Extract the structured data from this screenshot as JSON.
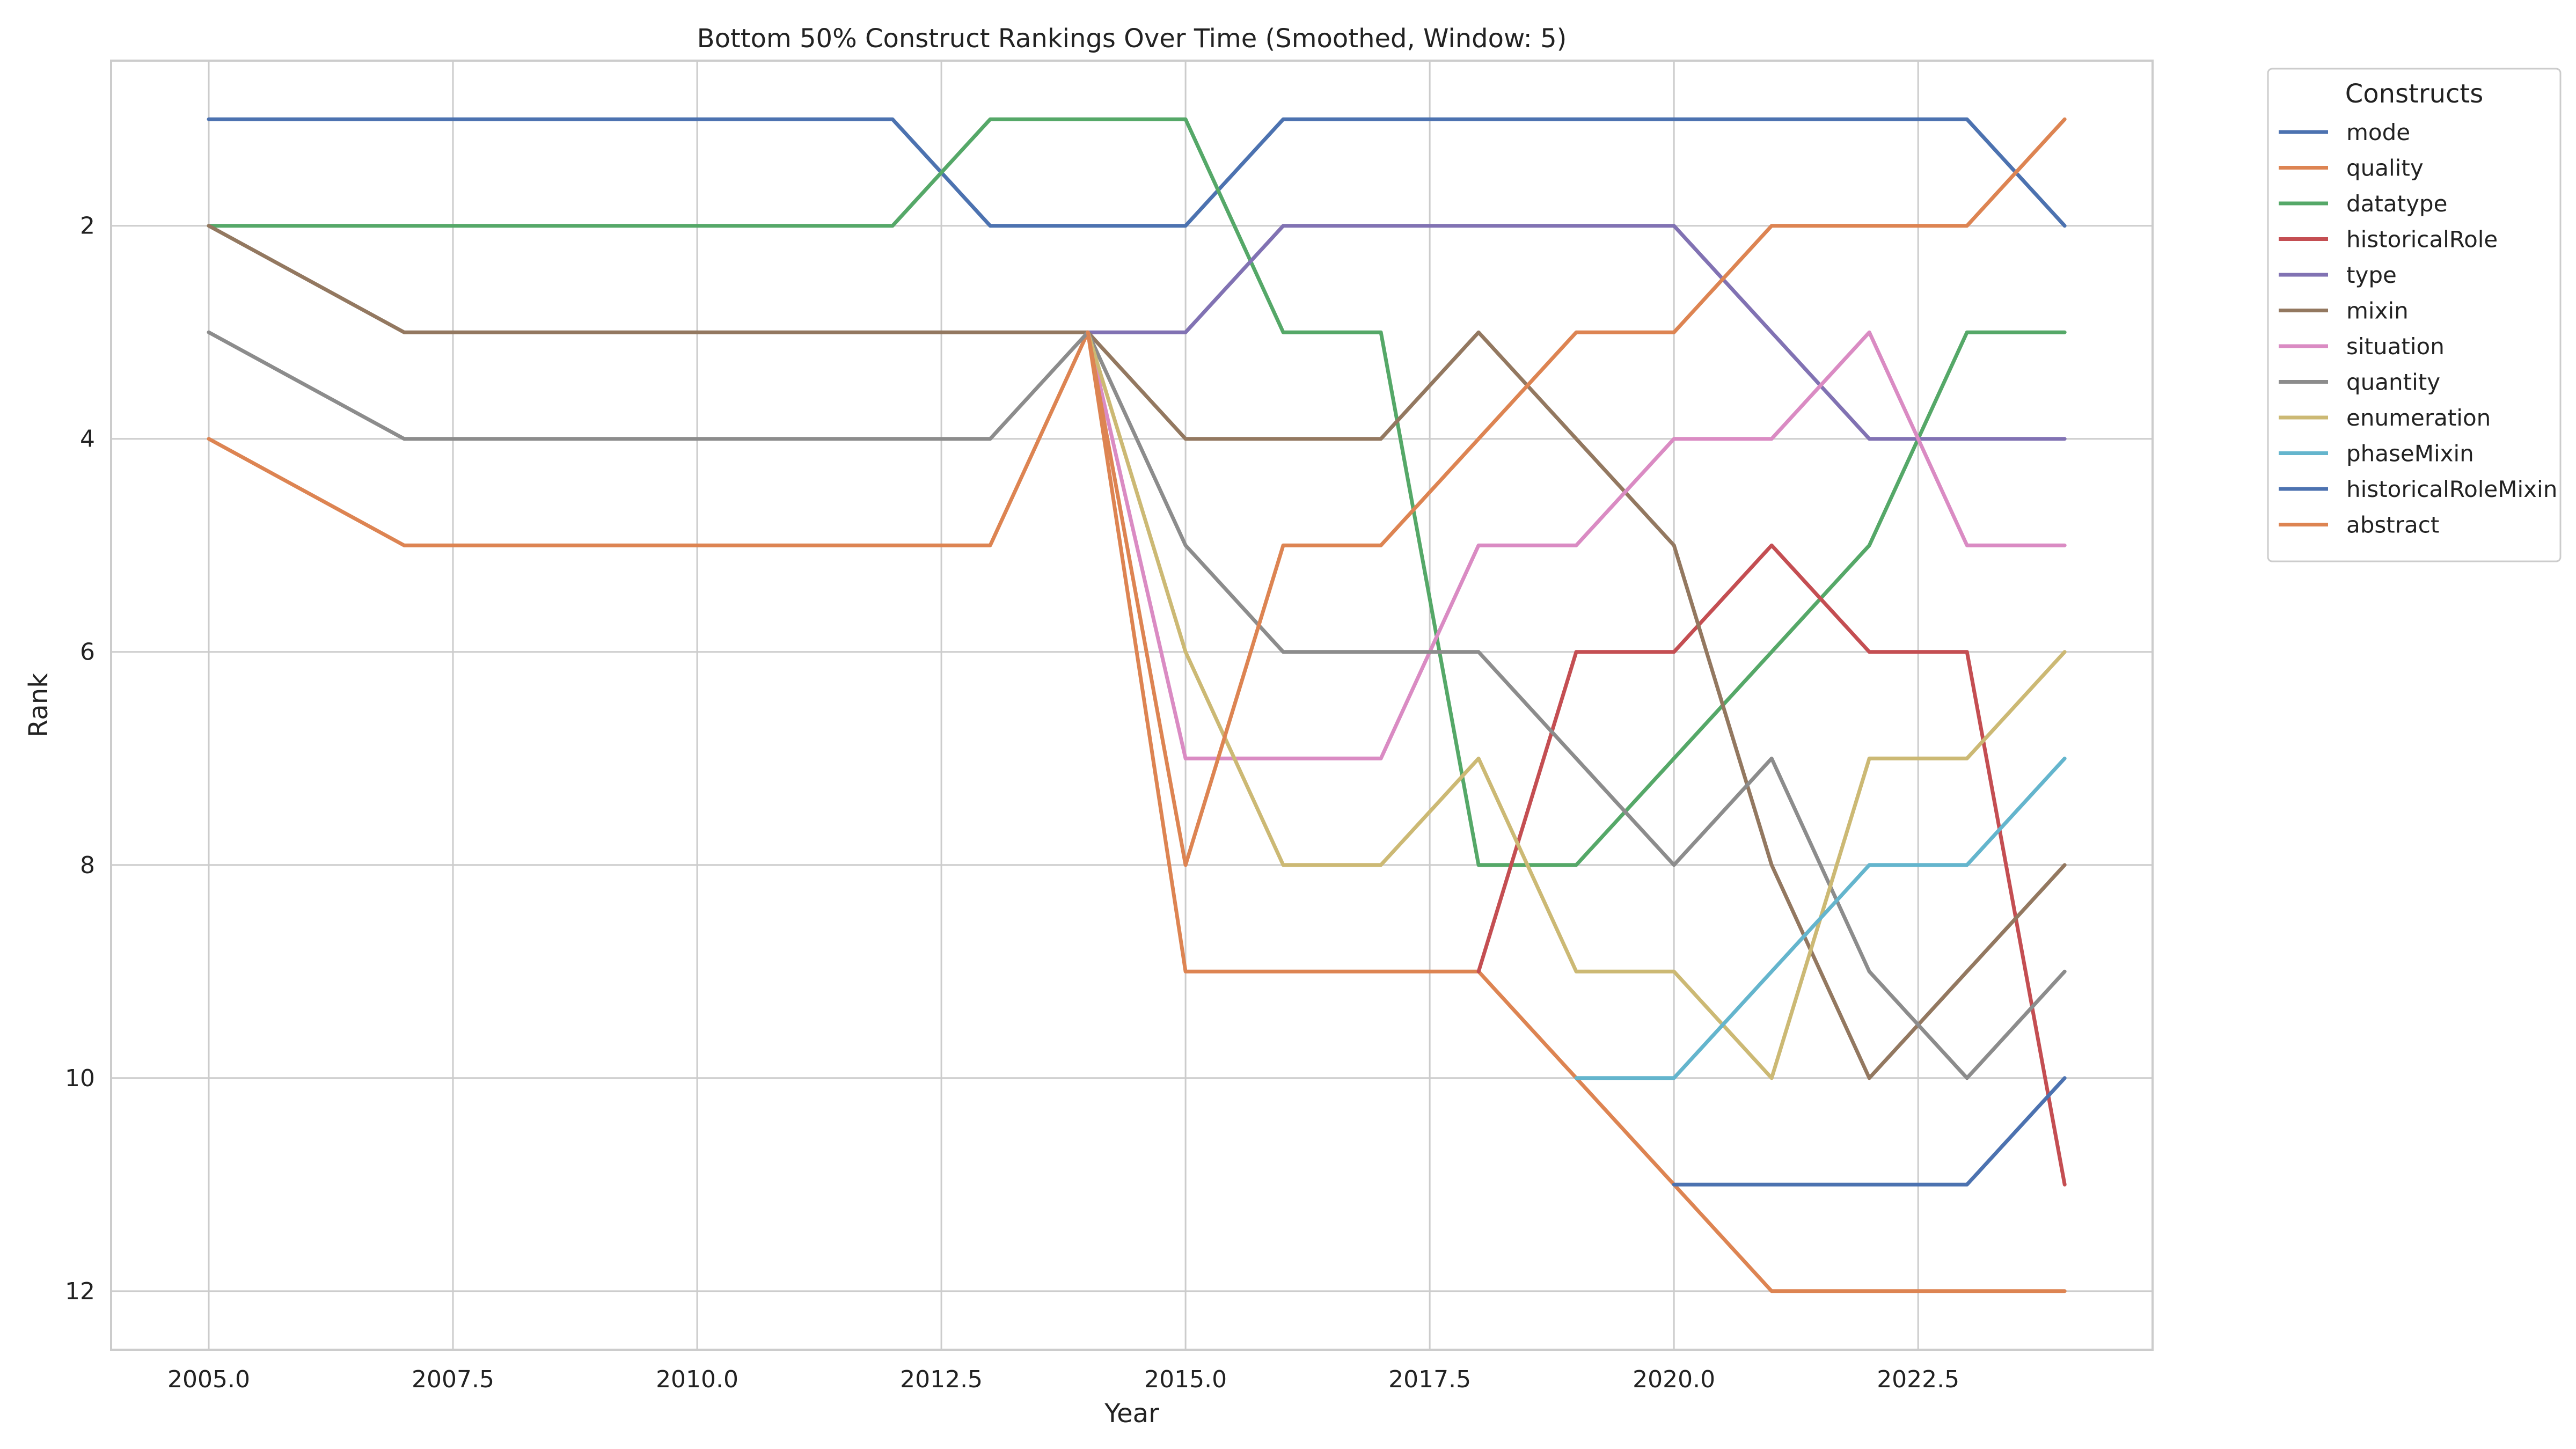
{
  "chart_data": {
    "type": "line",
    "title": "Bottom 50% Construct Rankings Over Time (Smoothed, Window: 5)",
    "xlabel": "Year",
    "ylabel": "Rank",
    "xlim": [
      2004.0,
      2024.9
    ],
    "ylim": [
      12.55,
      0.45
    ],
    "y_inverted": true,
    "grid": true,
    "xticks": [
      2005.0,
      2007.5,
      2010.0,
      2012.5,
      2015.0,
      2017.5,
      2020.0,
      2022.5
    ],
    "xtick_labels": [
      "2005.0",
      "2007.5",
      "2010.0",
      "2012.5",
      "2015.0",
      "2017.5",
      "2020.0",
      "2022.5"
    ],
    "yticks": [
      2,
      4,
      6,
      8,
      10,
      12
    ],
    "ytick_labels": [
      "2",
      "4",
      "6",
      "8",
      "10",
      "12"
    ],
    "legend_title": "Constructs",
    "legend_position": "outside-right-top",
    "x": [
      2005,
      2007,
      2012,
      2013,
      2014,
      2015,
      2016,
      2017,
      2018,
      2019,
      2020,
      2021,
      2022,
      2023,
      2024
    ],
    "series": [
      {
        "name": "mode",
        "color": "#4c72b0",
        "values": [
          1,
          1,
          1,
          2,
          2,
          2,
          1,
          1,
          1,
          1,
          1,
          1,
          1,
          1,
          2
        ]
      },
      {
        "name": "quality",
        "color": "#dd8452",
        "values": [
          4,
          5,
          5,
          5,
          3,
          9,
          9,
          9,
          9,
          10,
          11,
          12,
          12,
          12,
          12
        ]
      },
      {
        "name": "datatype",
        "color": "#55a868",
        "values": [
          2,
          2,
          2,
          1,
          1,
          1,
          3,
          3,
          8,
          8,
          7,
          6,
          5,
          3,
          3
        ]
      },
      {
        "name": "historicalRole",
        "color": "#c44e52",
        "values": [
          null,
          null,
          null,
          null,
          null,
          null,
          null,
          null,
          9,
          6,
          6,
          5,
          6,
          6,
          11
        ]
      },
      {
        "name": "type",
        "color": "#8172b3",
        "values": [
          null,
          null,
          null,
          null,
          3,
          3,
          2,
          2,
          2,
          2,
          2,
          3,
          4,
          4,
          4
        ]
      },
      {
        "name": "mixin",
        "color": "#937860",
        "values": [
          2,
          3,
          3,
          3,
          3,
          4,
          4,
          4,
          3,
          4,
          5,
          8,
          10,
          9,
          8
        ]
      },
      {
        "name": "situation",
        "color": "#da8bc3",
        "values": [
          null,
          null,
          null,
          null,
          3,
          7,
          7,
          7,
          5,
          5,
          4,
          4,
          3,
          5,
          5
        ]
      },
      {
        "name": "quantity",
        "color": "#8c8c8c",
        "values": [
          3,
          4,
          4,
          4,
          3,
          5,
          6,
          6,
          6,
          7,
          8,
          7,
          9,
          10,
          9
        ]
      },
      {
        "name": "enumeration",
        "color": "#ccb974",
        "values": [
          null,
          null,
          null,
          null,
          3,
          6,
          8,
          8,
          7,
          9,
          9,
          10,
          7,
          7,
          6
        ]
      },
      {
        "name": "phaseMixin",
        "color": "#64b5cd",
        "values": [
          null,
          null,
          null,
          null,
          null,
          null,
          null,
          null,
          null,
          10,
          10,
          9,
          8,
          8,
          7
        ]
      },
      {
        "name": "historicalRoleMixin",
        "color": "#4c72b0",
        "values": [
          null,
          null,
          null,
          null,
          null,
          null,
          null,
          null,
          null,
          null,
          11,
          11,
          11,
          11,
          10
        ]
      },
      {
        "name": "abstract",
        "color": "#dd8452",
        "values": [
          null,
          null,
          null,
          null,
          3,
          8,
          5,
          5,
          4,
          3,
          3,
          2,
          2,
          2,
          1
        ]
      }
    ]
  }
}
